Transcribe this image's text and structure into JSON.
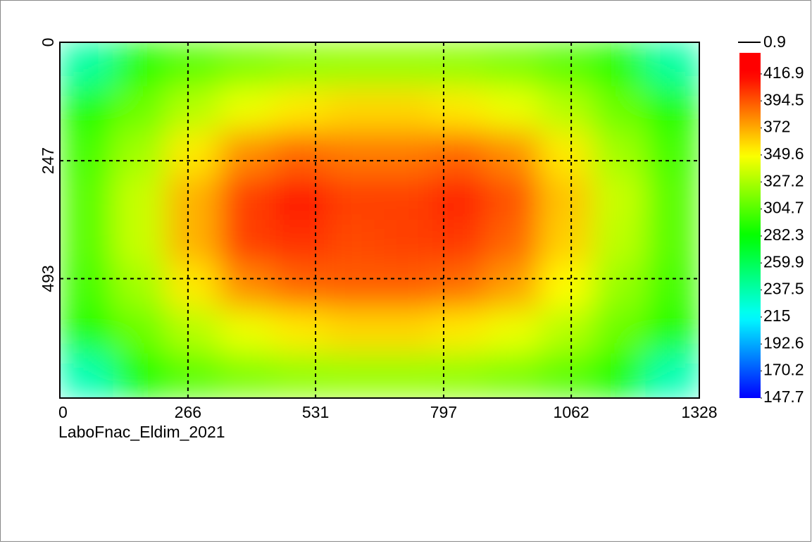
{
  "chart_data": {
    "type": "heatmap",
    "subtitle": "LaboFnac_Eldim_2021",
    "xlim": [
      0,
      1328
    ],
    "xticks": [
      0,
      266,
      531,
      797,
      1062,
      1328
    ],
    "ylim": [
      0,
      742
    ],
    "yticks": [
      0,
      247,
      493
    ],
    "y_inverted": true,
    "grid": true,
    "values": [
      [
        240,
        290,
        305,
        315,
        320,
        322,
        322,
        320,
        315,
        305,
        290,
        240
      ],
      [
        290,
        310,
        330,
        345,
        355,
        360,
        360,
        355,
        345,
        330,
        310,
        290
      ],
      [
        300,
        325,
        355,
        380,
        390,
        385,
        385,
        390,
        380,
        355,
        325,
        300
      ],
      [
        305,
        335,
        370,
        400,
        412,
        400,
        400,
        408,
        395,
        365,
        335,
        305
      ],
      [
        305,
        335,
        370,
        400,
        405,
        398,
        400,
        402,
        390,
        362,
        332,
        305
      ],
      [
        300,
        325,
        355,
        380,
        390,
        392,
        392,
        388,
        375,
        350,
        322,
        300
      ],
      [
        290,
        310,
        330,
        345,
        355,
        360,
        360,
        355,
        345,
        330,
        310,
        290
      ],
      [
        235,
        285,
        305,
        315,
        320,
        322,
        322,
        320,
        315,
        305,
        285,
        235
      ]
    ],
    "colormap": [
      "#0000ff",
      "#00ffff",
      "#00ff00",
      "#ffff00",
      "#ff0000"
    ],
    "clim": [
      147.7,
      434.4
    ],
    "cticks": [
      416.9,
      394.5,
      372.0,
      349.6,
      327.2,
      304.7,
      282.3,
      259.9,
      237.5,
      215.0,
      192.6,
      170.2,
      147.7
    ],
    "contour_level": 0.9
  }
}
